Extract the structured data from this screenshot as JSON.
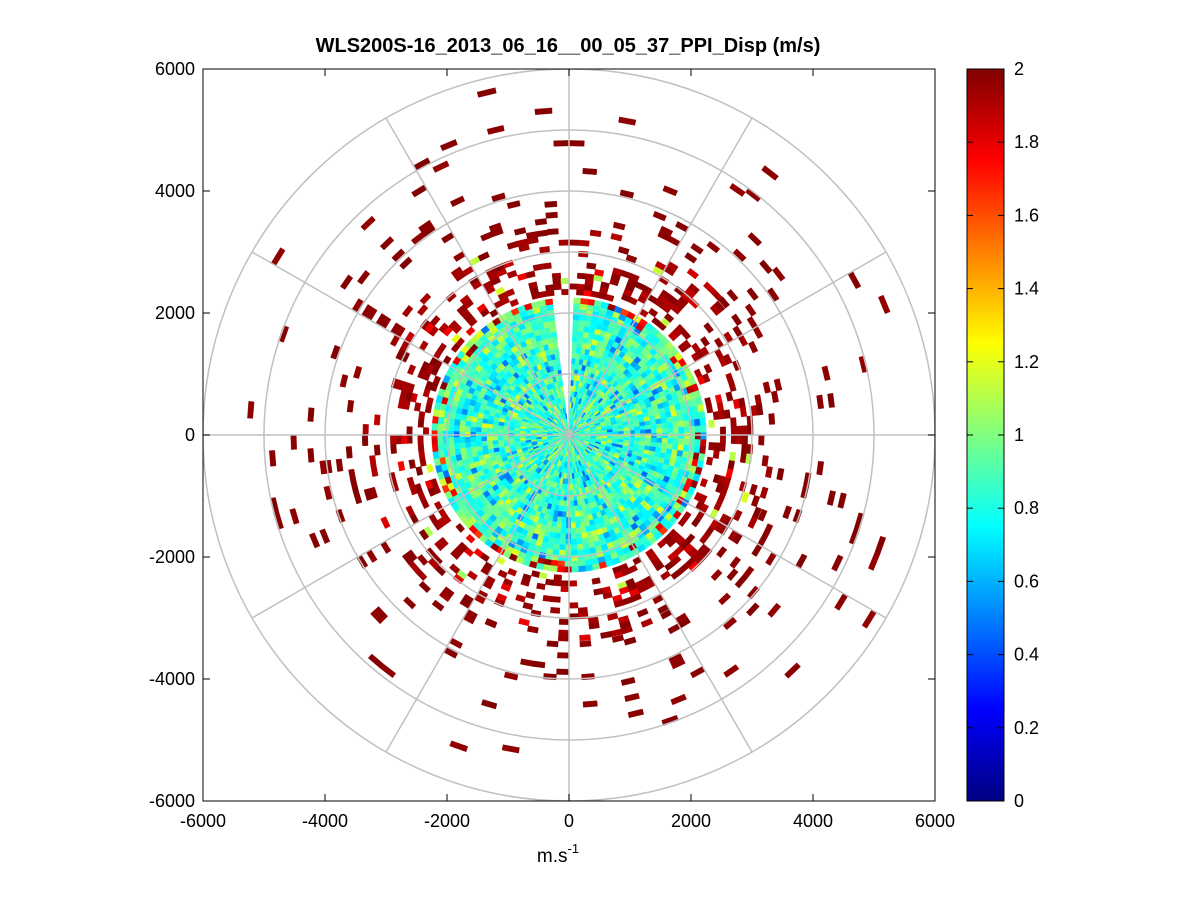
{
  "chart_data": {
    "type": "heatmap",
    "subtype": "polar-ppi",
    "title": "WLS200S-16_2013_06_16__00_05_37_PPI_Disp (m/s)",
    "xlabel": "m.s",
    "xlabel_sup": "-1",
    "ylabel": "",
    "xlim": [
      -6000,
      6000
    ],
    "ylim": [
      -6000,
      6000
    ],
    "xticks": [
      -6000,
      -4000,
      -2000,
      0,
      2000,
      4000,
      6000
    ],
    "yticks": [
      -6000,
      -4000,
      -2000,
      0,
      2000,
      4000,
      6000
    ],
    "polar_grid": {
      "range_rings": [
        1000,
        2000,
        3000,
        4000,
        5000,
        6000
      ],
      "spoke_angles_deg": [
        0,
        30,
        60,
        90,
        120,
        150,
        180,
        210,
        240,
        270,
        300,
        330
      ]
    },
    "colorbar": {
      "min": 0,
      "max": 2,
      "colormap": "jet",
      "ticks": [
        0,
        0.2,
        0.4,
        0.6,
        0.8,
        1,
        1.2,
        1.4,
        1.6,
        1.8,
        2
      ]
    },
    "data_regions": [
      {
        "name": "near-field disk",
        "r_min": 0,
        "r_max": 2300,
        "value_range": [
          0.6,
          1.2
        ],
        "typical": 0.85,
        "note": "gap between azimuth ~352 and ~2 deg"
      },
      {
        "name": "mid ring",
        "r_min": 2300,
        "r_max": 3300,
        "value_range": [
          1.5,
          2.0
        ],
        "typical": 1.95
      },
      {
        "name": "outer scattered",
        "r_min": 3300,
        "r_max": 6000,
        "value_range": [
          1.9,
          2.0
        ],
        "typical": 2.0
      }
    ],
    "axis_color": "#000000",
    "grid_color": "#c0c0c0"
  }
}
